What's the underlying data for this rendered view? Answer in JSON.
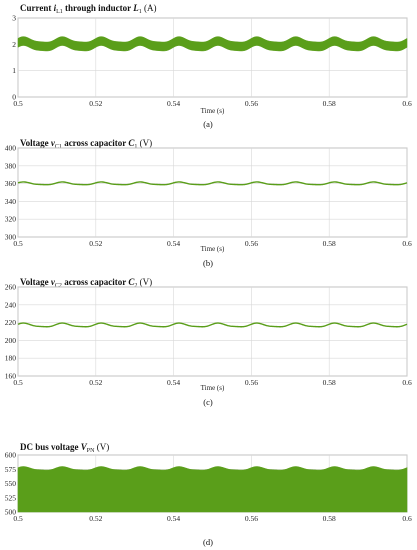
{
  "chart_data": [
    {
      "type": "line",
      "title": "Current iL1 through inductor L1 (A)",
      "title_parts": [
        "Current ",
        "i",
        "L1",
        " through inductor ",
        "L",
        "1",
        " (A)"
      ],
      "xlabel": "Time (s)",
      "caption": "(a)",
      "xlim": [
        0.5,
        0.6
      ],
      "ylim": [
        0,
        3
      ],
      "x_ticks": [
        "0.5",
        "0.52",
        "0.54",
        "0.56",
        "0.58",
        "0.6"
      ],
      "y_ticks": [
        "0",
        "1",
        "2",
        "3"
      ],
      "grid": true,
      "band": true,
      "center": 2.0,
      "amplitude": 0.1,
      "ripple_halfwidth": 0.17,
      "period": 0.01,
      "color": "#5a9e1a"
    },
    {
      "type": "line",
      "title": "Voltage vC1 across capacitor C1 (V)",
      "title_parts": [
        "Voltage ",
        "v",
        "C1",
        " across capacitor ",
        "C",
        "1",
        " (V)"
      ],
      "xlabel": "Time (s)",
      "caption": "(b)",
      "xlim": [
        0.5,
        0.6
      ],
      "ylim": [
        300,
        400
      ],
      "x_ticks": [
        "0.5",
        "0.52",
        "0.54",
        "0.56",
        "0.58",
        "0.6"
      ],
      "y_ticks": [
        "300",
        "320",
        "340",
        "360",
        "380",
        "400"
      ],
      "grid": true,
      "band": false,
      "center": 360,
      "amplitude": 1.5,
      "ripple_halfwidth": 0.5,
      "period": 0.01,
      "color": "#5a9e1a"
    },
    {
      "type": "line",
      "title": "Voltage vC2 across capacitor C2 (V)",
      "title_parts": [
        "Voltage ",
        "v",
        "C2",
        " across capacitor ",
        "C",
        "2",
        " (V)"
      ],
      "xlabel": "Time (s)",
      "caption": "(c)",
      "xlim": [
        0.5,
        0.6
      ],
      "ylim": [
        160,
        260
      ],
      "x_ticks": [
        "0.5",
        "0.52",
        "0.54",
        "0.56",
        "0.58",
        "0.6"
      ],
      "y_ticks": [
        "160",
        "180",
        "200",
        "220",
        "240",
        "260"
      ],
      "grid": true,
      "band": false,
      "center": 217,
      "amplitude": 2,
      "ripple_halfwidth": 0.5,
      "period": 0.01,
      "color": "#5a9e1a"
    },
    {
      "type": "area",
      "title": "DC bus voltage VPN (V)",
      "title_parts": [
        "DC bus voltage ",
        "V",
        "PN",
        " (V)"
      ],
      "xlabel": "",
      "caption": "(d)",
      "xlim": [
        0.5,
        0.6
      ],
      "ylim": [
        500,
        600
      ],
      "x_ticks": [
        "0.5",
        "0.52",
        "0.54",
        "0.56",
        "0.58",
        "0.6"
      ],
      "y_ticks": [
        "500",
        "525",
        "550",
        "575",
        "600"
      ],
      "grid": true,
      "band": true,
      "center": 576,
      "amplitude": 3,
      "ripple_halfwidth": 0,
      "period": 0.01,
      "fill_to": 500,
      "color": "#5a9e1a"
    }
  ]
}
